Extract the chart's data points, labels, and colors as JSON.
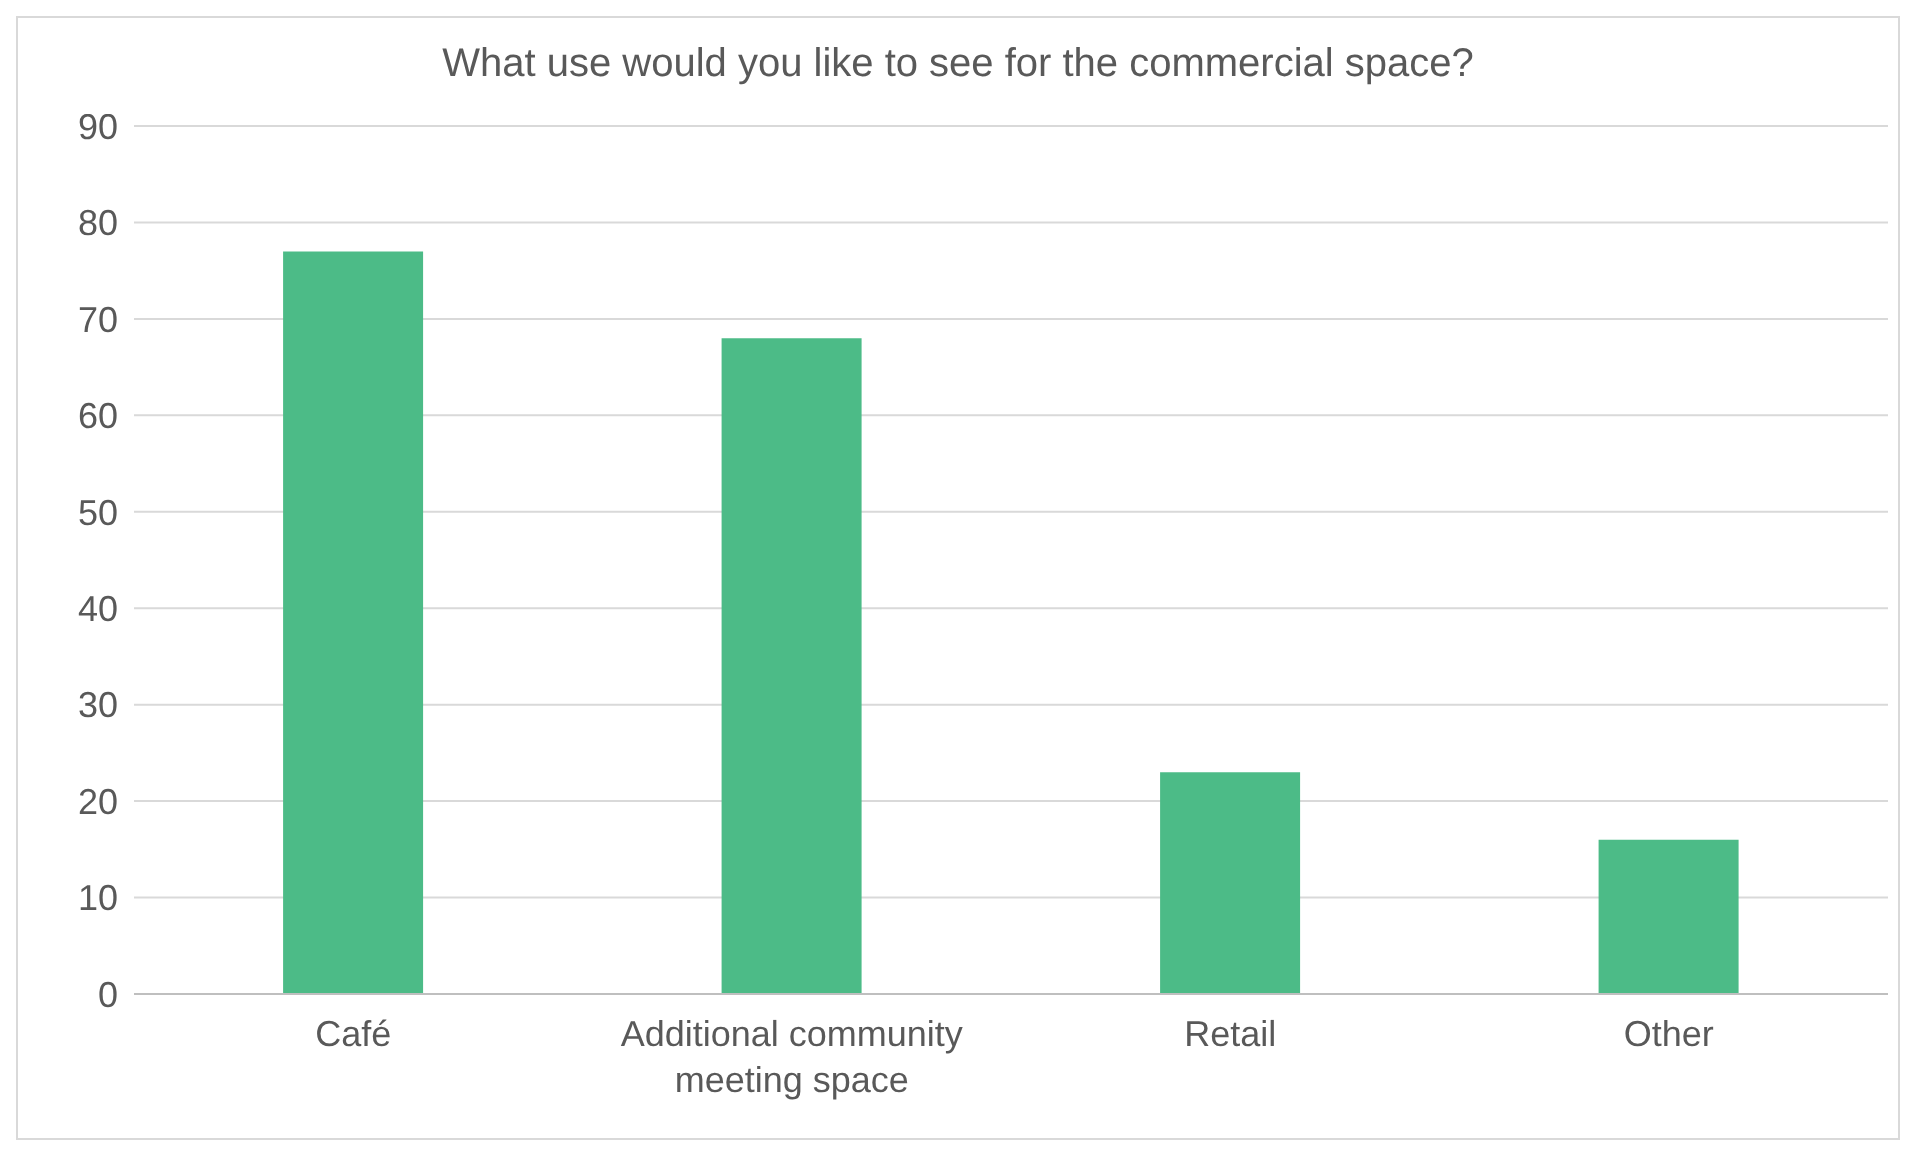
{
  "chart_data": {
    "type": "bar",
    "title": "What use would you like to see for the commercial space?",
    "categories": [
      "Café",
      "Additional community meeting space",
      "Retail",
      "Other"
    ],
    "values": [
      77,
      68,
      23,
      16
    ],
    "color": "#4cbb87",
    "ylim": [
      0,
      90
    ],
    "yticks": [
      0,
      10,
      20,
      30,
      40,
      50,
      60,
      70,
      80,
      90
    ],
    "grid": "y",
    "legend": false
  }
}
